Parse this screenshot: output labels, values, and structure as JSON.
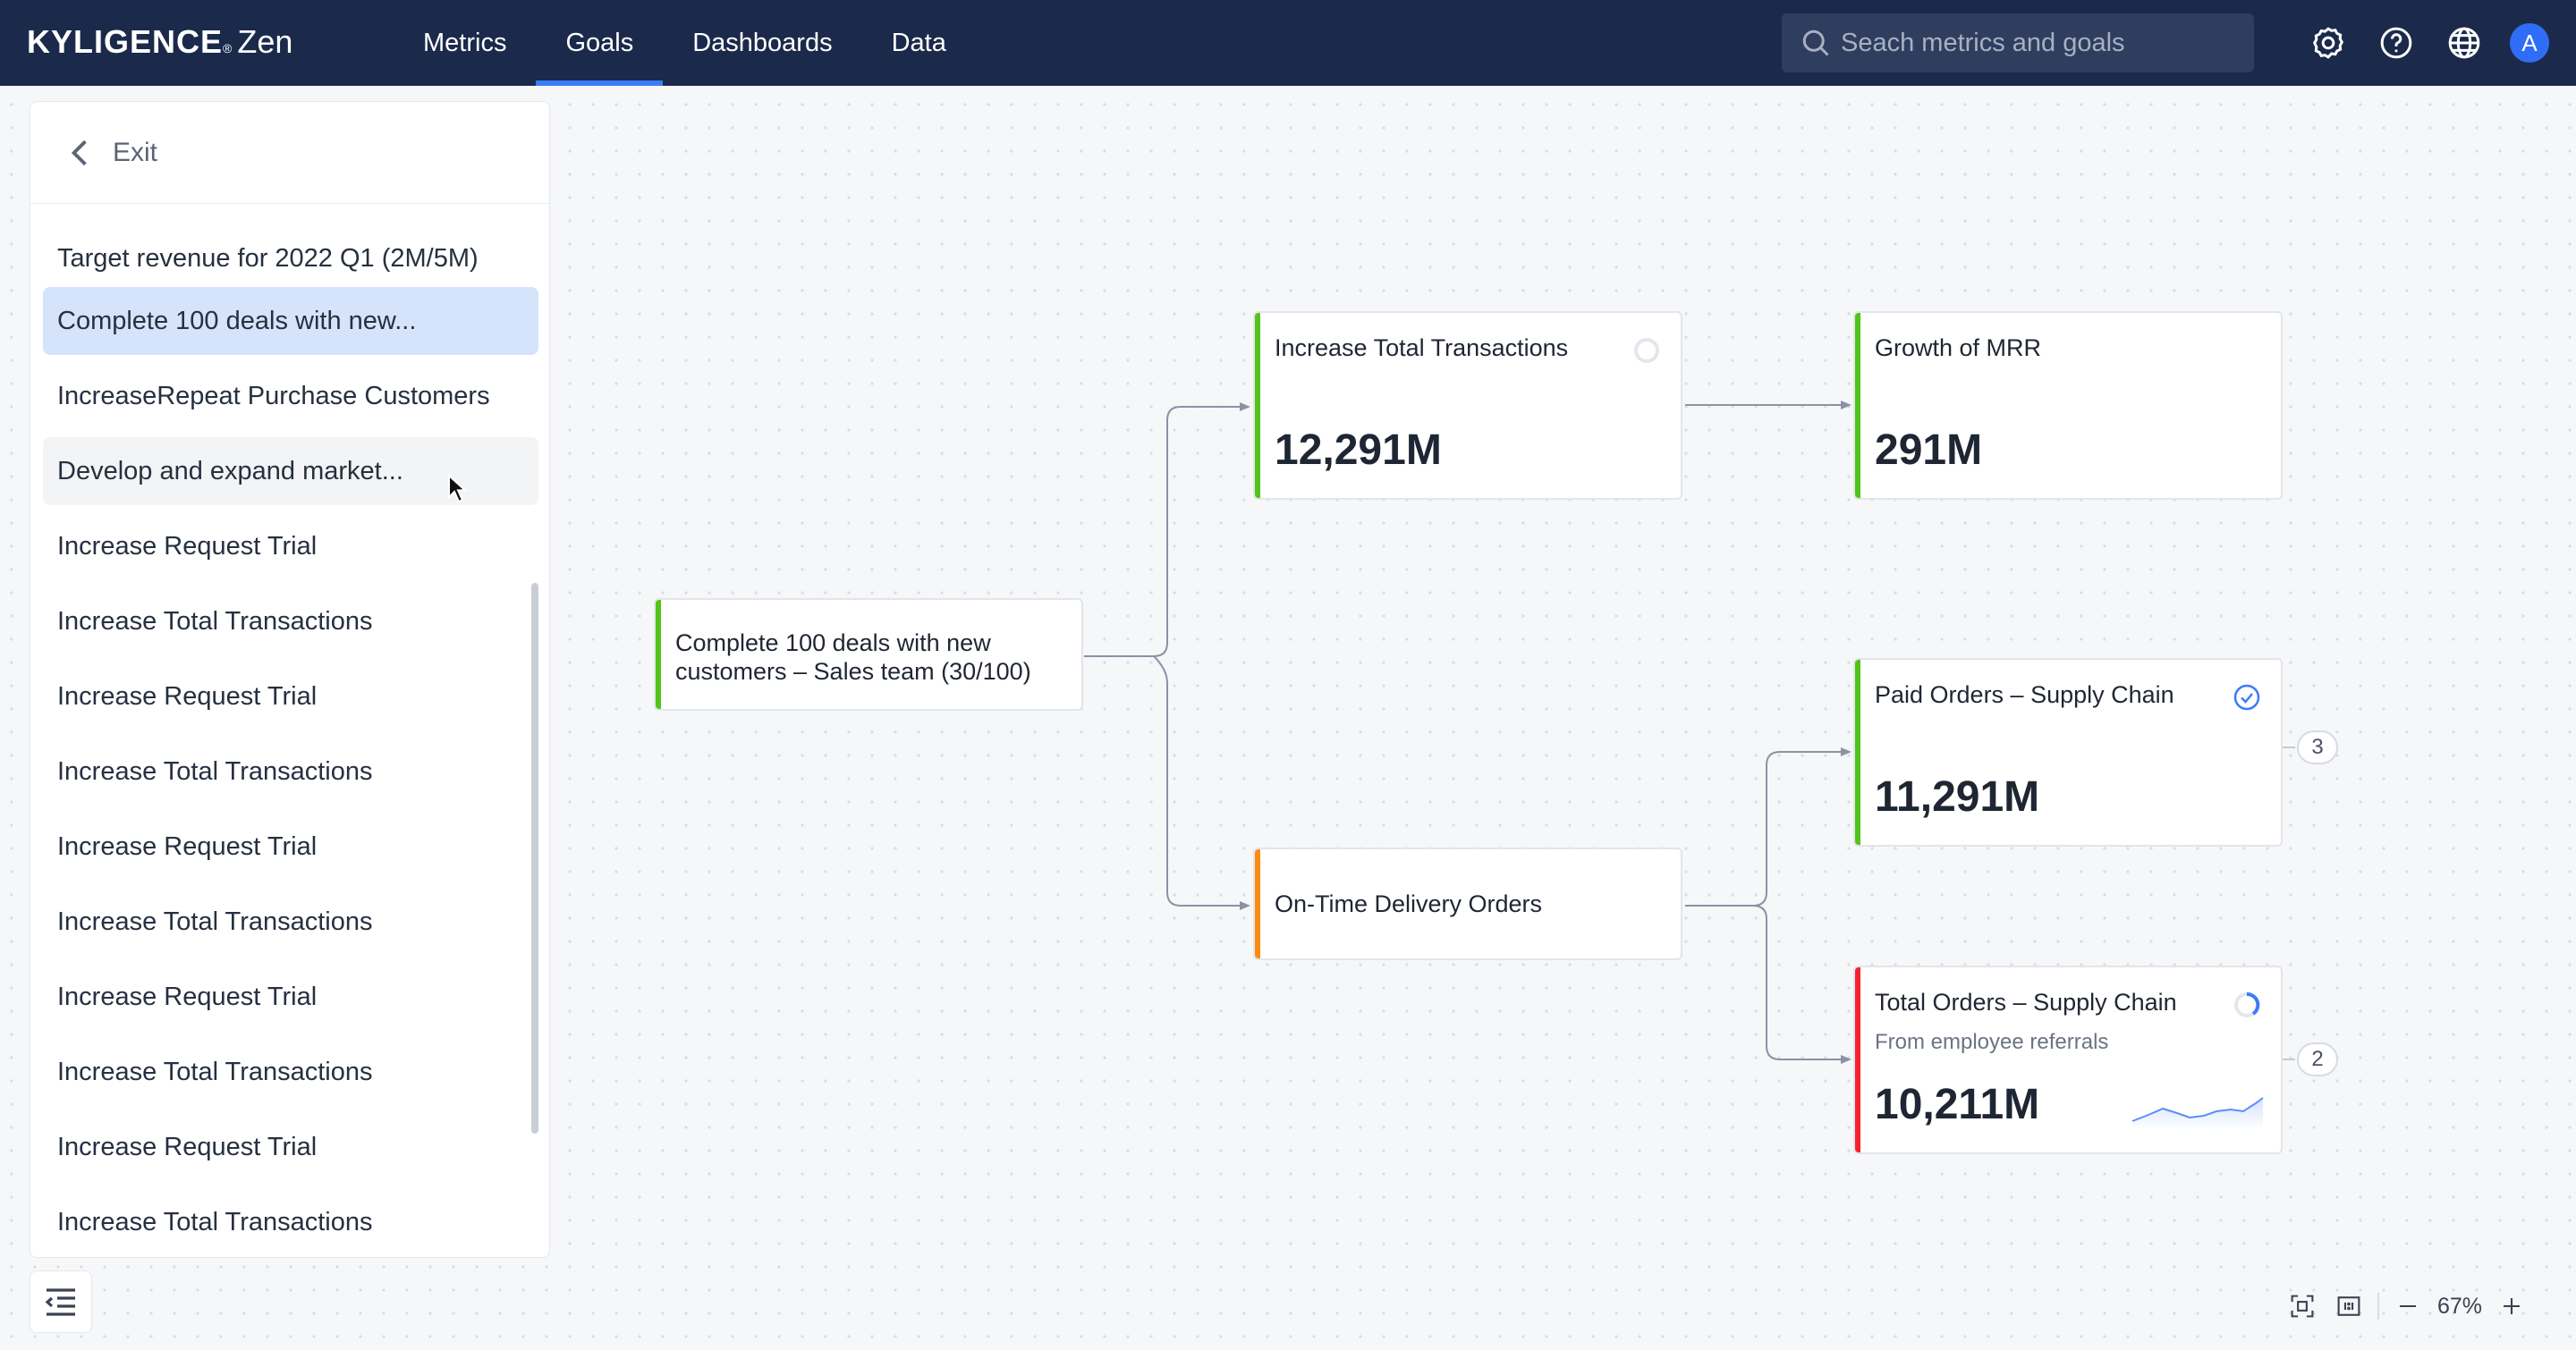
{
  "app": {
    "brand": "KYLIGENCE",
    "product": "Zen",
    "nav": [
      {
        "label": "Metrics",
        "active": false
      },
      {
        "label": "Goals",
        "active": true
      },
      {
        "label": "Dashboards",
        "active": false
      },
      {
        "label": "Data",
        "active": false
      }
    ],
    "search_placeholder": "Seach metrics and goals",
    "icons": [
      "settings-icon",
      "help-icon",
      "language-globe-icon"
    ],
    "avatar_initial": "A",
    "accent_color": "#3b7cf6",
    "header_color": "#1b2a4b"
  },
  "sidebar": {
    "exit_label": "Exit",
    "goals": [
      {
        "label": "Target revenue for 2022 Q1 (2M/5M)",
        "state": "normal"
      },
      {
        "label": "Complete 100 deals with new...",
        "state": "selected"
      },
      {
        "label": "IncreaseRepeat Purchase Customers",
        "state": "normal"
      },
      {
        "label": "Develop and expand market...",
        "state": "hovered"
      },
      {
        "label": "Increase Request Trial",
        "state": "normal"
      },
      {
        "label": "Increase Total Transactions",
        "state": "normal"
      },
      {
        "label": "Increase Request Trial",
        "state": "normal"
      },
      {
        "label": "Increase Total Transactions",
        "state": "normal"
      },
      {
        "label": "Increase Request Trial",
        "state": "normal"
      },
      {
        "label": "Increase Total Transactions",
        "state": "normal"
      },
      {
        "label": "Increase Request Trial",
        "state": "normal"
      },
      {
        "label": "Increase Total Transactions",
        "state": "normal"
      },
      {
        "label": "Increase Request Trial",
        "state": "normal"
      },
      {
        "label": "Increase Total Transactions",
        "state": "normal"
      }
    ]
  },
  "tree": {
    "root": {
      "title": "Complete 100 deals with new customers – Sales team (30/100)",
      "color": "#52c41a"
    },
    "nodes": {
      "increase_total_transactions": {
        "title": "Increase Total Transactions",
        "value": "12,291M",
        "color": "#52c41a",
        "status": "not-started"
      },
      "growth_of_mrr": {
        "title": "Growth of MRR",
        "value": "291M",
        "color": "#52c41a"
      },
      "on_time_delivery": {
        "title": "On-Time Delivery Orders",
        "color": "#fa8c16"
      },
      "paid_orders": {
        "title": "Paid Orders – Supply Chain",
        "value": "11,291M",
        "color": "#52c41a",
        "status": "completed",
        "children_count": "3"
      },
      "total_orders": {
        "title": "Total Orders – Supply Chain",
        "subtitle": "From employee referrals",
        "value": "10,211M",
        "color": "#f5222d",
        "status": "in-progress",
        "children_count": "2"
      }
    }
  },
  "zoom": {
    "level": "67%"
  }
}
